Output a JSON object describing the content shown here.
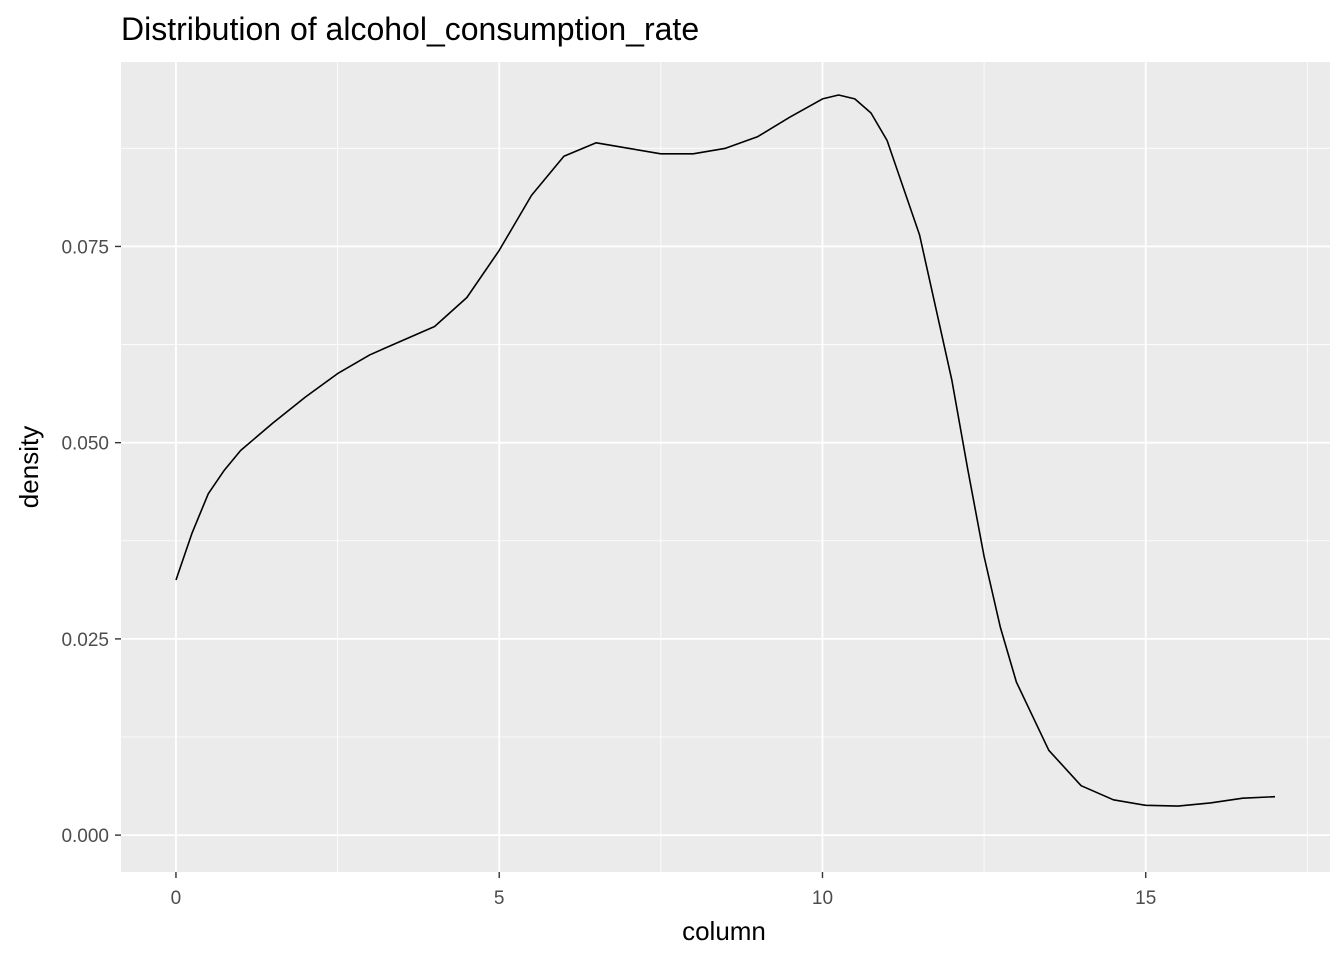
{
  "chart_data": {
    "type": "line",
    "title": "Distribution of alcohol_consumption_rate",
    "xlabel": "column",
    "ylabel": "density",
    "xlim": [
      -0.85,
      17.85
    ],
    "ylim": [
      -0.0047,
      0.0985
    ],
    "x_ticks": [
      0,
      5,
      10,
      15
    ],
    "x_tick_labels": [
      "0",
      "5",
      "10",
      "15"
    ],
    "y_ticks": [
      0,
      0.025,
      0.05,
      0.075
    ],
    "y_tick_labels": [
      "0.000",
      "0.025",
      "0.050",
      "0.075"
    ],
    "x_minor": [
      2.5,
      7.5,
      12.5,
      17.5
    ],
    "y_minor": [
      0.0125,
      0.0375,
      0.0625,
      0.0875
    ],
    "grid": true,
    "panel_background": "#ebebeb",
    "grid_color": "#ffffff",
    "line_color": "#000000",
    "series": [
      {
        "x": [
          0,
          0.25,
          0.5,
          0.75,
          1.0,
          1.5,
          2.0,
          2.5,
          3.0,
          3.5,
          4.0,
          4.5,
          5.0,
          5.5,
          6.0,
          6.5,
          7.0,
          7.5,
          8.0,
          8.5,
          9.0,
          9.5,
          10.0,
          10.25,
          10.5,
          10.75,
          11.0,
          11.5,
          12.0,
          12.25,
          12.5,
          12.75,
          13.0,
          13.5,
          14.0,
          14.5,
          15.0,
          15.5,
          16.0,
          16.5,
          17.0
        ],
        "values": [
          0.0325,
          0.0385,
          0.0435,
          0.0465,
          0.049,
          0.0525,
          0.0558,
          0.0588,
          0.0612,
          0.063,
          0.0648,
          0.0685,
          0.0745,
          0.0815,
          0.0865,
          0.0882,
          0.0875,
          0.0868,
          0.0868,
          0.0875,
          0.089,
          0.0915,
          0.0938,
          0.0943,
          0.0938,
          0.092,
          0.0885,
          0.0765,
          0.058,
          0.0465,
          0.0355,
          0.0265,
          0.0195,
          0.0108,
          0.0063,
          0.0045,
          0.0038,
          0.0037,
          0.0041,
          0.0047,
          0.0049
        ]
      }
    ]
  }
}
